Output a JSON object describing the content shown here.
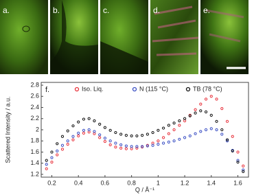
{
  "images": [
    {
      "label": "a."
    },
    {
      "label": "b."
    },
    {
      "label": "c."
    },
    {
      "label": "d."
    },
    {
      "label": "e."
    }
  ],
  "chart_data": {
    "type": "scatter",
    "panel_label": "f.",
    "x_label": "Q / Å⁻¹",
    "y_label": "Scattered Intensity / a.u.",
    "x": [
      0.16,
      0.2,
      0.24,
      0.28,
      0.32,
      0.36,
      0.4,
      0.44,
      0.48,
      0.52,
      0.56,
      0.6,
      0.64,
      0.68,
      0.72,
      0.76,
      0.8,
      0.84,
      0.88,
      0.92,
      0.96,
      1.0,
      1.04,
      1.08,
      1.12,
      1.16,
      1.2,
      1.24,
      1.28,
      1.32,
      1.36,
      1.4,
      1.44,
      1.48,
      1.52,
      1.56,
      1.6,
      1.64
    ],
    "series": [
      {
        "name": "Iso. Liq.",
        "color": "#e8323c",
        "values": [
          1.3,
          1.42,
          1.55,
          1.65,
          1.74,
          1.82,
          1.89,
          1.94,
          1.96,
          1.93,
          1.86,
          1.79,
          1.73,
          1.69,
          1.67,
          1.66,
          1.66,
          1.67,
          1.69,
          1.72,
          1.76,
          1.8,
          1.86,
          1.93,
          2.0,
          2.08,
          2.16,
          2.26,
          2.36,
          2.46,
          2.55,
          2.6,
          2.55,
          2.38,
          2.15,
          1.88,
          1.6,
          1.35
        ]
      },
      {
        "name": "N (115 °C)",
        "color": "#3a4fc4",
        "values": [
          1.38,
          1.5,
          1.62,
          1.72,
          1.8,
          1.88,
          1.94,
          1.99,
          2.0,
          1.97,
          1.91,
          1.85,
          1.8,
          1.76,
          1.73,
          1.71,
          1.7,
          1.7,
          1.7,
          1.71,
          1.72,
          1.74,
          1.76,
          1.78,
          1.8,
          1.83,
          1.86,
          1.89,
          1.93,
          1.97,
          2.0,
          2.02,
          2.0,
          1.92,
          1.8,
          1.63,
          1.45,
          1.28
        ]
      },
      {
        "name": "TB (78 °C)",
        "color": "#111111",
        "values": [
          1.45,
          1.6,
          1.75,
          1.88,
          1.98,
          2.07,
          2.14,
          2.19,
          2.2,
          2.16,
          2.1,
          2.04,
          1.99,
          1.95,
          1.92,
          1.9,
          1.89,
          1.89,
          1.9,
          1.92,
          1.95,
          1.99,
          2.03,
          2.08,
          2.12,
          2.16,
          2.2,
          2.25,
          2.3,
          2.34,
          2.32,
          2.26,
          2.15,
          2.0,
          1.82,
          1.62,
          1.42,
          1.25
        ]
      }
    ],
    "xlim": [
      0.12,
      1.68
    ],
    "ylim": [
      1.15,
      2.85
    ],
    "xticks": [
      0.2,
      0.4,
      0.6,
      0.8,
      1,
      1.2,
      1.4,
      1.6
    ],
    "yticks": [
      1.2,
      1.4,
      1.6,
      1.8,
      2,
      2.2,
      2.4,
      2.6,
      2.8
    ],
    "legend": "top"
  }
}
